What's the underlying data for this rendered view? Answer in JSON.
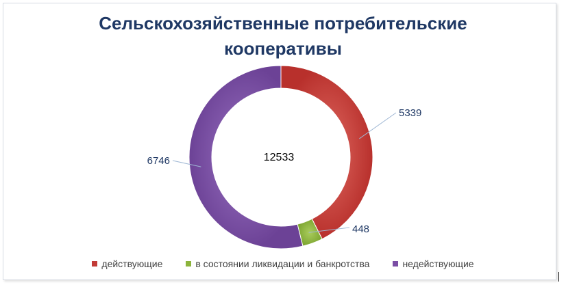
{
  "chart_data": {
    "type": "pie",
    "variant": "donut",
    "title": "Сельскохозяйственные потребительские кооперативы",
    "title_lines": [
      "Сельскохозяйственные потребительские",
      "кооперативы"
    ],
    "center_label": "12533",
    "categories": [
      "действующие",
      "в состоянии ликвидации и банкротства",
      "недействующие"
    ],
    "values": [
      5339,
      448,
      6746
    ],
    "data_labels": [
      "5339",
      "448",
      "6746"
    ],
    "colors": [
      "#c23b37",
      "#8cb43c",
      "#7b4ea5"
    ],
    "legend_position": "bottom"
  }
}
